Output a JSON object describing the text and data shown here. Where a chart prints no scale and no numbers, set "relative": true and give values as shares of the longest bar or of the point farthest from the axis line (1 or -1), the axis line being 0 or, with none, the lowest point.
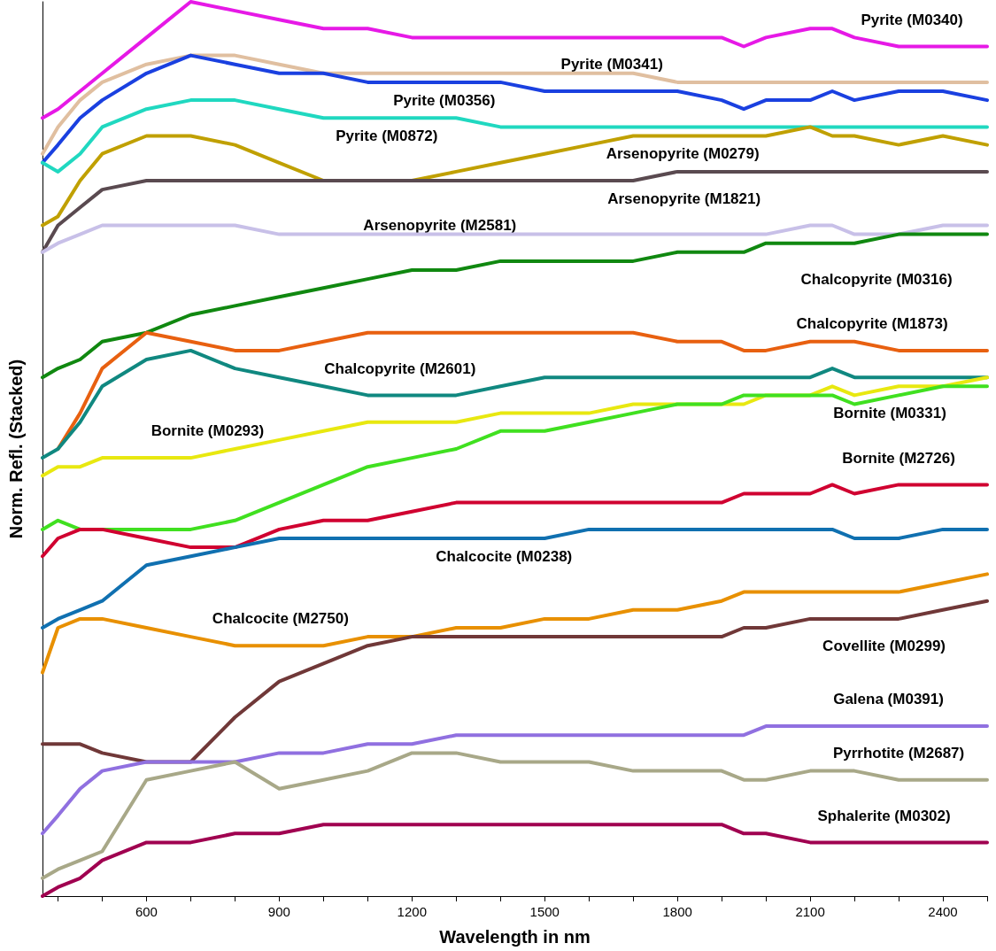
{
  "chart_data": {
    "type": "line",
    "xlabel": "Wavelength in nm",
    "ylabel": "Norm. Refl. (Stacked)",
    "relative": true,
    "xlim": [
      365,
      2500
    ],
    "xticks": [
      {
        "value": 400,
        "label": null
      },
      {
        "value": 500,
        "label": null
      },
      600,
      {
        "value": 700,
        "label": null
      },
      {
        "value": 800,
        "label": null
      },
      900,
      {
        "value": 1000,
        "label": null
      },
      {
        "value": 1100,
        "label": null
      },
      1200,
      {
        "value": 1300,
        "label": null
      },
      {
        "value": 1400,
        "label": null
      },
      1500,
      {
        "value": 1600,
        "label": null
      },
      {
        "value": 1700,
        "label": null
      },
      1800,
      {
        "value": 1900,
        "label": null
      },
      {
        "value": 2000,
        "label": null
      },
      2100,
      {
        "value": 2200,
        "label": null
      },
      {
        "value": 2300,
        "label": null
      },
      2400,
      {
        "value": 2500,
        "label": null
      }
    ],
    "x": [
      365,
      400,
      450,
      500,
      600,
      700,
      800,
      900,
      1000,
      1100,
      1200,
      1300,
      1400,
      1500,
      1600,
      1700,
      1800,
      1900,
      1950,
      2000,
      2100,
      2150,
      2200,
      2300,
      2400,
      2500
    ],
    "marker": "none",
    "line_style": "solid",
    "series": [
      {
        "name": "Pyrite (M0340)",
        "color": "#e619e6",
        "values": [
          0.87,
          0.88,
          0.9,
          0.92,
          0.96,
          1.0,
          0.99,
          0.98,
          0.97,
          0.97,
          0.96,
          0.96,
          0.96,
          0.96,
          0.96,
          0.96,
          0.96,
          0.96,
          0.95,
          0.96,
          0.97,
          0.97,
          0.96,
          0.95,
          0.95,
          0.95
        ]
      },
      {
        "name": "Pyrite (M0341)",
        "color": "#e0bfa0",
        "values": [
          0.83,
          0.86,
          0.89,
          0.91,
          0.93,
          0.94,
          0.94,
          0.93,
          0.92,
          0.92,
          0.92,
          0.92,
          0.92,
          0.92,
          0.92,
          0.92,
          0.91,
          0.91,
          0.91,
          0.91,
          0.91,
          0.91,
          0.91,
          0.91,
          0.91,
          0.91
        ]
      },
      {
        "name": "Pyrite (M0356)",
        "color": "#1a40e0",
        "values": [
          0.82,
          0.84,
          0.87,
          0.89,
          0.92,
          0.94,
          0.93,
          0.92,
          0.92,
          0.91,
          0.91,
          0.91,
          0.91,
          0.9,
          0.9,
          0.9,
          0.9,
          0.89,
          0.88,
          0.89,
          0.89,
          0.9,
          0.89,
          0.9,
          0.9,
          0.89
        ]
      },
      {
        "name": "Pyrite (M0872)",
        "color": "#20d8c0",
        "values": [
          0.82,
          0.81,
          0.83,
          0.86,
          0.88,
          0.89,
          0.89,
          0.88,
          0.87,
          0.87,
          0.87,
          0.87,
          0.86,
          0.86,
          0.86,
          0.86,
          0.86,
          0.86,
          0.86,
          0.86,
          0.86,
          0.86,
          0.86,
          0.86,
          0.86,
          0.86
        ]
      },
      {
        "name": "Arsenopyrite (M0279)",
        "color": "#c0a000",
        "values": [
          0.75,
          0.76,
          0.8,
          0.83,
          0.85,
          0.85,
          0.84,
          0.82,
          0.8,
          0.8,
          0.8,
          0.81,
          0.82,
          0.83,
          0.84,
          0.85,
          0.85,
          0.85,
          0.85,
          0.85,
          0.86,
          0.85,
          0.85,
          0.84,
          0.85,
          0.84
        ]
      },
      {
        "name": "Arsenopyrite (M1821)",
        "color": "#5a4a50",
        "values": [
          0.72,
          0.75,
          0.77,
          0.79,
          0.8,
          0.8,
          0.8,
          0.8,
          0.8,
          0.8,
          0.8,
          0.8,
          0.8,
          0.8,
          0.8,
          0.8,
          0.81,
          0.81,
          0.81,
          0.81,
          0.81,
          0.81,
          0.81,
          0.81,
          0.81,
          0.81
        ]
      },
      {
        "name": "Arsenopyrite (M2581)",
        "color": "#c8c0e8",
        "values": [
          0.72,
          0.73,
          0.74,
          0.75,
          0.75,
          0.75,
          0.75,
          0.74,
          0.74,
          0.74,
          0.74,
          0.74,
          0.74,
          0.74,
          0.74,
          0.74,
          0.74,
          0.74,
          0.74,
          0.74,
          0.75,
          0.75,
          0.74,
          0.74,
          0.75,
          0.75
        ]
      },
      {
        "name": "Chalcopyrite (M0316)",
        "color": "#108810",
        "values": [
          0.58,
          0.59,
          0.6,
          0.62,
          0.63,
          0.65,
          0.66,
          0.67,
          0.68,
          0.69,
          0.7,
          0.7,
          0.71,
          0.71,
          0.71,
          0.71,
          0.72,
          0.72,
          0.72,
          0.73,
          0.73,
          0.73,
          0.73,
          0.74,
          0.74,
          0.74
        ]
      },
      {
        "name": "Chalcopyrite (M1873)",
        "color": "#e86010",
        "values": [
          null,
          0.5,
          0.54,
          0.59,
          0.63,
          0.62,
          0.61,
          0.61,
          0.62,
          0.63,
          0.63,
          0.63,
          0.63,
          0.63,
          0.63,
          0.63,
          0.62,
          0.62,
          0.61,
          0.61,
          0.62,
          0.62,
          0.62,
          0.61,
          0.61,
          0.61
        ]
      },
      {
        "name": "Chalcopyrite (M2601)",
        "color": "#108880",
        "values": [
          0.49,
          0.5,
          0.53,
          0.57,
          0.6,
          0.61,
          0.59,
          0.58,
          0.57,
          0.56,
          0.56,
          0.56,
          0.57,
          0.58,
          0.58,
          0.58,
          0.58,
          0.58,
          0.58,
          0.58,
          0.58,
          0.59,
          0.58,
          0.58,
          0.58,
          0.58
        ]
      },
      {
        "name": "Bornite (M0293)",
        "color": "#e8e810",
        "values": [
          0.47,
          0.48,
          0.48,
          0.49,
          0.49,
          0.49,
          0.5,
          0.51,
          0.52,
          0.53,
          0.53,
          0.53,
          0.54,
          0.54,
          0.54,
          0.55,
          0.55,
          0.55,
          0.55,
          0.56,
          0.56,
          0.57,
          0.56,
          0.57,
          0.57,
          0.58
        ]
      },
      {
        "name": "Bornite (M0331)",
        "color": "#40e020",
        "values": [
          0.41,
          0.42,
          0.41,
          0.41,
          0.41,
          0.41,
          0.42,
          0.44,
          0.46,
          0.48,
          0.49,
          0.5,
          0.52,
          0.52,
          0.53,
          0.54,
          0.55,
          0.55,
          0.56,
          0.56,
          0.56,
          0.56,
          0.55,
          0.56,
          0.57,
          0.57
        ]
      },
      {
        "name": "Bornite (M2726)",
        "color": "#d00030",
        "values": [
          0.38,
          0.4,
          0.41,
          0.41,
          0.4,
          0.39,
          0.39,
          0.41,
          0.42,
          0.42,
          0.43,
          0.44,
          0.44,
          0.44,
          0.44,
          0.44,
          0.44,
          0.44,
          0.45,
          0.45,
          0.45,
          0.46,
          0.45,
          0.46,
          0.46,
          0.46
        ]
      },
      {
        "name": "Chalcocite (M0238)",
        "color": "#1070b0",
        "values": [
          0.3,
          0.31,
          0.32,
          0.33,
          0.37,
          0.38,
          0.39,
          0.4,
          0.4,
          0.4,
          0.4,
          0.4,
          0.4,
          0.4,
          0.41,
          0.41,
          0.41,
          0.41,
          0.41,
          0.41,
          0.41,
          0.41,
          0.4,
          0.4,
          0.41,
          0.41
        ]
      },
      {
        "name": "Chalcocite (M2750)",
        "color": "#e89000",
        "values": [
          0.25,
          0.3,
          0.31,
          0.31,
          0.3,
          0.29,
          0.28,
          0.28,
          0.28,
          0.29,
          0.29,
          0.3,
          0.3,
          0.31,
          0.31,
          0.32,
          0.32,
          0.33,
          0.34,
          0.34,
          0.34,
          0.34,
          0.34,
          0.34,
          0.35,
          0.36
        ]
      },
      {
        "name": "Covellite (M0299)",
        "color": "#703838",
        "values": [
          0.17,
          0.17,
          0.17,
          0.16,
          0.15,
          0.15,
          0.2,
          0.24,
          0.26,
          0.28,
          0.29,
          0.29,
          0.29,
          0.29,
          0.29,
          0.29,
          0.29,
          0.29,
          0.3,
          0.3,
          0.31,
          0.31,
          0.31,
          0.31,
          0.32,
          0.33
        ]
      },
      {
        "name": "Galena (M0391)",
        "color": "#9070e0",
        "values": [
          0.07,
          0.09,
          0.12,
          0.14,
          0.15,
          0.15,
          0.15,
          0.16,
          0.16,
          0.17,
          0.17,
          0.18,
          0.18,
          0.18,
          0.18,
          0.18,
          0.18,
          0.18,
          0.18,
          0.19,
          0.19,
          0.19,
          0.19,
          0.19,
          0.19,
          0.19
        ]
      },
      {
        "name": "Pyrrhotite (M2687)",
        "color": "#a8a888",
        "values": [
          0.02,
          0.03,
          0.04,
          0.05,
          0.13,
          0.14,
          0.15,
          0.12,
          0.13,
          0.14,
          0.16,
          0.16,
          0.15,
          0.15,
          0.15,
          0.14,
          0.14,
          0.14,
          0.13,
          0.13,
          0.14,
          0.14,
          0.14,
          0.13,
          0.13,
          0.13
        ]
      },
      {
        "name": "Sphalerite (M0302)",
        "color": "#a00050",
        "values": [
          0.0,
          0.01,
          0.02,
          0.04,
          0.06,
          0.06,
          0.07,
          0.07,
          0.08,
          0.08,
          0.08,
          0.08,
          0.08,
          0.08,
          0.08,
          0.08,
          0.08,
          0.08,
          0.07,
          0.07,
          0.06,
          0.06,
          0.06,
          0.06,
          0.06,
          0.06
        ]
      }
    ]
  }
}
